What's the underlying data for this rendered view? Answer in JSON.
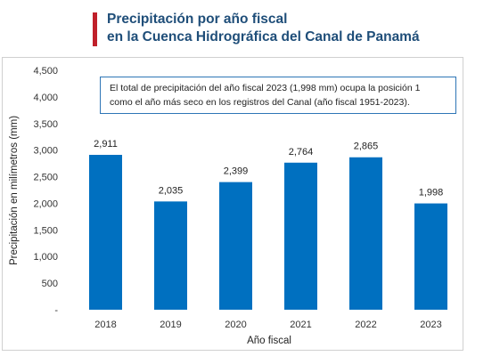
{
  "header": {
    "title_line1": "Precipitación por año fiscal",
    "title_line2": "en la Cuenca Hidrográfica del Canal de Panamá"
  },
  "annotation": {
    "line1": "El total de precipitación del año fiscal 2023 (1,998 mm) ocupa la posición 1",
    "line2": "como el año más seco en los registros del Canal (año fiscal 1951-2023)."
  },
  "colors": {
    "bar": "#0070c0",
    "title": "#1f4e79",
    "accent": "#c0202a"
  },
  "chart_data": {
    "type": "bar",
    "title": "Precipitación por año fiscal en la Cuenca Hidrográfica del Canal de Panamá",
    "xlabel": "Año fiscal",
    "ylabel": "Precipitación en milímetros (mm)",
    "categories": [
      "2018",
      "2019",
      "2020",
      "2021",
      "2022",
      "2023"
    ],
    "values": [
      2911,
      2035,
      2399,
      2764,
      2865,
      1998
    ],
    "data_labels": [
      "2,911",
      "2,035",
      "2,399",
      "2,764",
      "2,865",
      "1,998"
    ],
    "ylim": [
      0,
      4500
    ],
    "yticks": [
      0,
      500,
      1000,
      1500,
      2000,
      2500,
      3000,
      3500,
      4000,
      4500
    ],
    "ytick_labels": [
      "-",
      "500",
      "1,000",
      "1,500",
      "2,000",
      "2,500",
      "3,000",
      "3,500",
      "4,000",
      "4,500"
    ],
    "grid": false,
    "legend": "none"
  }
}
